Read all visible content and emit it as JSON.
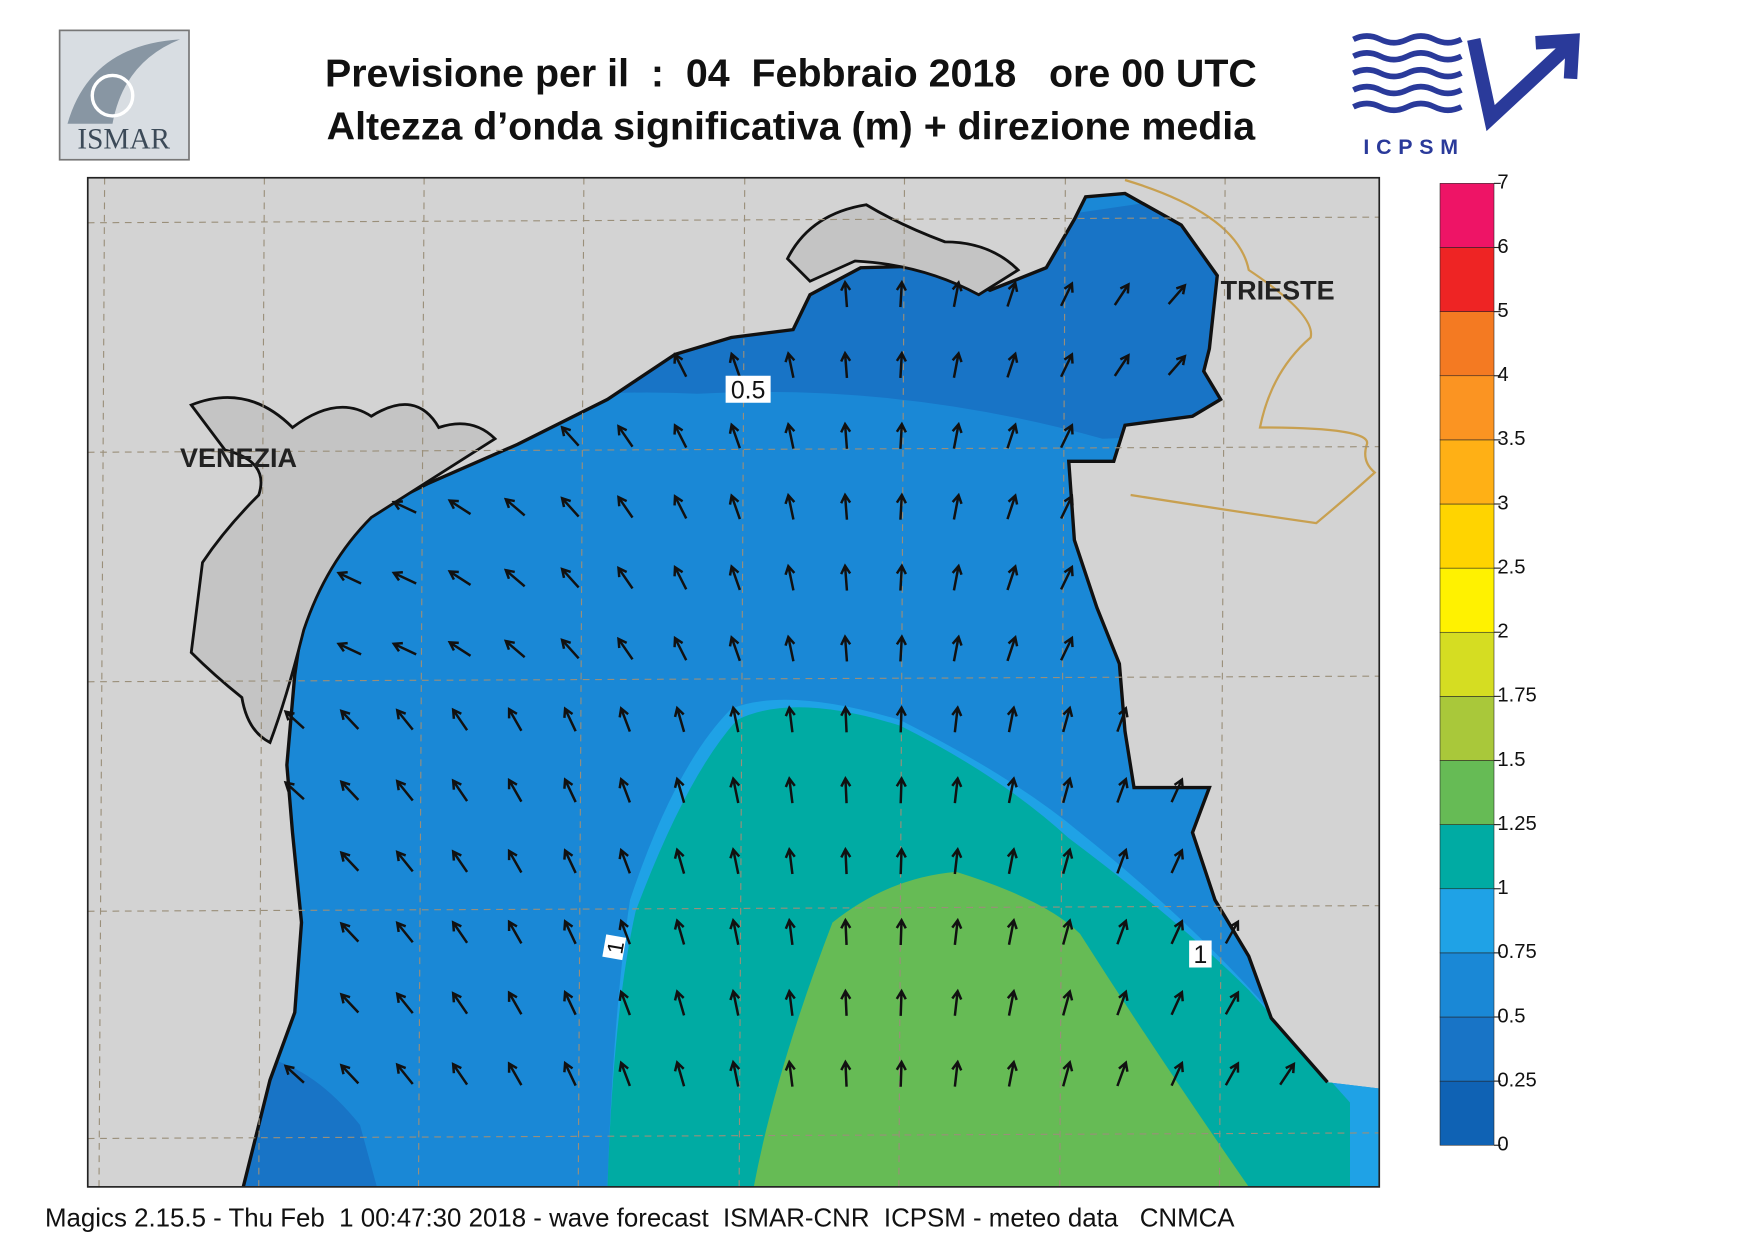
{
  "header": {
    "title": "Previsione per il  :  04  Febbraio 2018   ore 00 UTC",
    "subtitle": "Altezza d’onda significativa (m) + direzione media"
  },
  "logos": {
    "left": "ISMAR",
    "right": "ICPSM"
  },
  "map": {
    "places": [
      "VENEZIA",
      "TRIESTE"
    ],
    "contour_labels": [
      "0.5",
      "1",
      "1"
    ]
  },
  "colorbar": {
    "ticks": [
      0,
      0.25,
      0.5,
      0.75,
      1,
      1.25,
      1.5,
      1.75,
      2,
      2.5,
      3,
      3.5,
      4,
      5,
      6,
      7
    ],
    "colors": [
      "#0f62b4",
      "#1874c6",
      "#1a88d6",
      "#1fa2e6",
      "#00aba3",
      "#66bb55",
      "#a9c83a",
      "#d5dd22",
      "#fff200",
      "#ffd400",
      "#ffb015",
      "#fb9422",
      "#f47a22",
      "#ee2424",
      "#ee1466"
    ]
  },
  "footer": "Magics 2.15.5 - Thu Feb  1 00:47:30 2018 - wave forecast  ISMAR-CNR  ICPSM - meteo data   CNMCA"
}
